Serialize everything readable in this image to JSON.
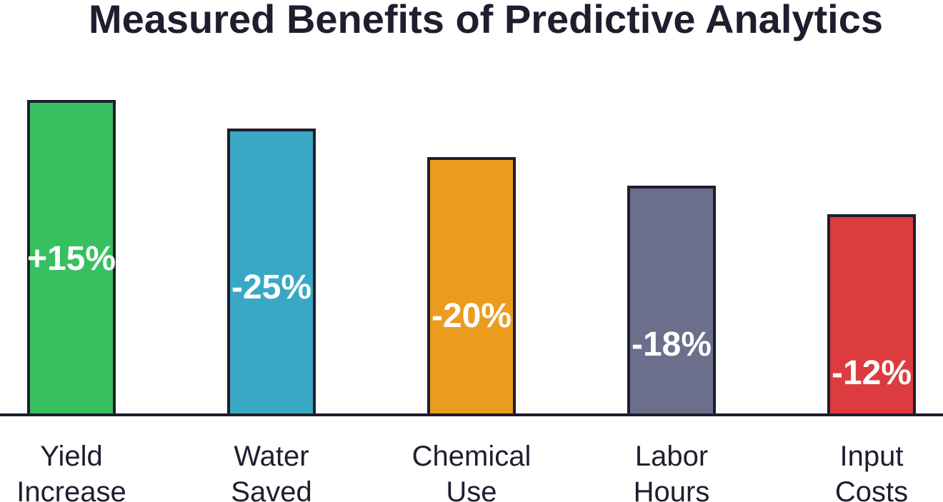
{
  "chart_data": {
    "type": "bar",
    "title": "Measured Benefits of Predictive Analytics",
    "categories": [
      [
        "Yield",
        "Increase"
      ],
      [
        "Water",
        "Saved"
      ],
      [
        "Chemical",
        "Use"
      ],
      [
        "Labor",
        "Hours"
      ],
      [
        "Input",
        "Costs"
      ]
    ],
    "values": [
      15,
      -25,
      -20,
      -18,
      -12
    ],
    "value_labels": [
      "+15%",
      "-25%",
      "-20%",
      "-18%",
      "-12%"
    ],
    "colors": [
      "#36c060",
      "#3aa8c4",
      "#ea9c1e",
      "#6b6f8b",
      "#dc3c40"
    ],
    "xlabel": "",
    "ylabel": "",
    "grid": false,
    "legend": "none"
  }
}
